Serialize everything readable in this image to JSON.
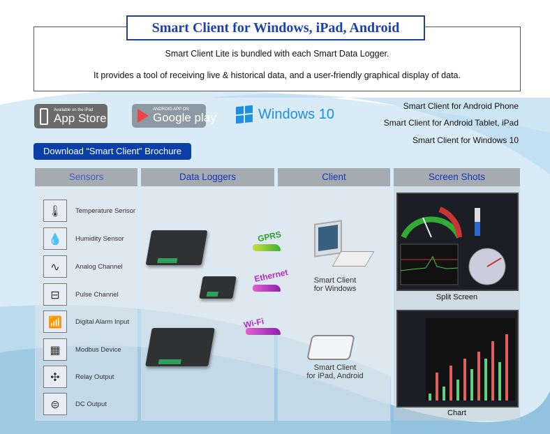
{
  "header": {
    "title": "Smart Client for Windows, iPad, Android",
    "line1": "Smart Client Lite is bundled with each Smart Data Logger.",
    "line2": "It provides a tool of receiving live & historical data, and a user-friendly graphical display of data."
  },
  "badges": {
    "appstore_small": "Available on the iPad",
    "appstore_big": "App Store",
    "gplay_small": "ANDROID APP ON",
    "gplay_big": "Google play",
    "windows": "Windows 10"
  },
  "platforms": [
    "Smart Client for Android Phone",
    "Smart Client for Android Tablet, iPad",
    "Smart Client for Windows 10"
  ],
  "brochure_button": "Download “Smart Client” Brochure",
  "columns": [
    "Sensors",
    "Data Loggers",
    "Client",
    "Screen Shots"
  ],
  "sensors": [
    {
      "label": "Temperature Sensor",
      "icon": "thermometer-icon"
    },
    {
      "label": "Humidity Sensor",
      "icon": "water-drop-icon"
    },
    {
      "label": "Analog Channel",
      "icon": "analog-connector-icon"
    },
    {
      "label": "Pulse Channel",
      "icon": "flow-meter-icon"
    },
    {
      "label": "Digital Alarm Input",
      "icon": "alarm-remote-icon"
    },
    {
      "label": "Modbus Device",
      "icon": "modbus-meter-icon"
    },
    {
      "label": "Relay Output",
      "icon": "fan-icon"
    },
    {
      "label": "DC Output",
      "icon": "dc-symbol-icon"
    }
  ],
  "protocols": [
    "GPRS",
    "Ethernet",
    "Wi-Fi"
  ],
  "clients": {
    "windows": [
      "Smart Client",
      "for Windows"
    ],
    "mobile": [
      "Smart Client",
      "for iPad, Android"
    ]
  },
  "screenshots": {
    "split": "Split Screen",
    "chart": "Chart"
  },
  "colors": {
    "title": "#1d43a8",
    "button": "#0a3ea8",
    "header_text": "#1636b8",
    "gprs": "#2aa02a",
    "ethernet": "#b02cc0",
    "wifi": "#b02cc0"
  }
}
